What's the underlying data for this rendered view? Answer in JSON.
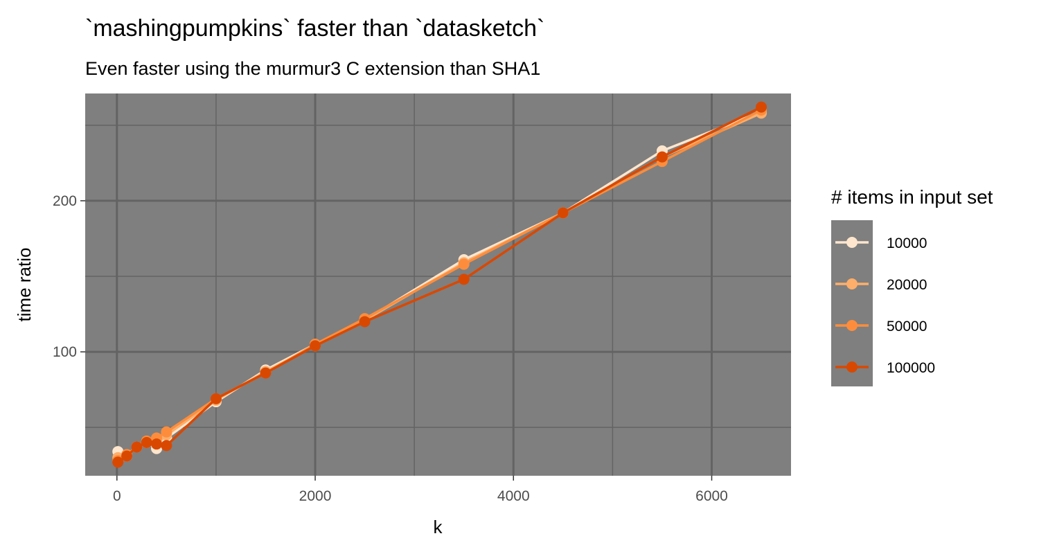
{
  "chart_data": {
    "type": "line",
    "title": "`mashingpumpkins` faster than `datasketch`",
    "subtitle": "Even faster using the murmur3 C extension than SHA1",
    "xlabel": "k",
    "ylabel": "time ratio",
    "xlim": [
      -320,
      6800
    ],
    "ylim": [
      18,
      271
    ],
    "x_ticks": [
      0,
      2000,
      4000,
      6000
    ],
    "x_minor_ticks": [
      1000,
      3000,
      5000
    ],
    "y_ticks": [
      100,
      200
    ],
    "y_minor_ticks": [
      50,
      150,
      250
    ],
    "x_tick_labels": [
      "0",
      "2000",
      "4000",
      "6000"
    ],
    "y_tick_labels": [
      "100",
      "200"
    ],
    "grid": true,
    "panel_background": "#7f7f7f",
    "grid_color": "#636363",
    "legend": {
      "title": "# items in input set",
      "position": "right"
    },
    "series": [
      {
        "name": "10000",
        "color": "#fee6ce",
        "points": [
          [
            10,
            34
          ],
          [
            100,
            31
          ],
          [
            200,
            37
          ],
          [
            300,
            40
          ],
          [
            400,
            36
          ],
          [
            500,
            43
          ],
          [
            1000,
            67
          ],
          [
            1500,
            88
          ],
          [
            2000,
            105
          ],
          [
            2500,
            121
          ],
          [
            3500,
            161
          ],
          [
            4500,
            192
          ],
          [
            5500,
            233
          ],
          [
            6500,
            259
          ]
        ]
      },
      {
        "name": "20000",
        "color": "#fdae6b",
        "points": [
          [
            10,
            30
          ],
          [
            100,
            32
          ],
          [
            200,
            37
          ],
          [
            300,
            40
          ],
          [
            400,
            39
          ],
          [
            500,
            45
          ],
          [
            1000,
            68
          ],
          [
            1500,
            87
          ],
          [
            2000,
            104
          ],
          [
            2500,
            121
          ],
          [
            3500,
            159
          ],
          [
            4500,
            192
          ],
          [
            5500,
            229
          ],
          [
            6500,
            258
          ]
        ]
      },
      {
        "name": "50000",
        "color": "#fd8d3c",
        "points": [
          [
            10,
            28
          ],
          [
            100,
            32
          ],
          [
            200,
            37
          ],
          [
            300,
            41
          ],
          [
            400,
            43
          ],
          [
            500,
            47
          ],
          [
            1000,
            69
          ],
          [
            1500,
            86
          ],
          [
            2000,
            105
          ],
          [
            2500,
            122
          ],
          [
            3500,
            158
          ],
          [
            4500,
            192
          ],
          [
            5500,
            226
          ],
          [
            6500,
            260
          ]
        ]
      },
      {
        "name": "100000",
        "color": "#d94801",
        "points": [
          [
            10,
            27
          ],
          [
            100,
            31
          ],
          [
            200,
            37
          ],
          [
            300,
            40
          ],
          [
            400,
            39
          ],
          [
            500,
            38
          ],
          [
            1000,
            69
          ],
          [
            1500,
            86
          ],
          [
            2000,
            104
          ],
          [
            2500,
            120
          ],
          [
            3500,
            148
          ],
          [
            4500,
            192
          ],
          [
            5500,
            229
          ],
          [
            6500,
            262
          ]
        ]
      }
    ]
  }
}
